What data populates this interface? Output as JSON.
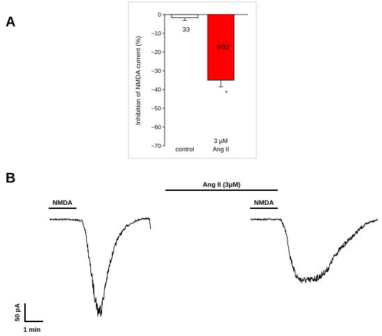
{
  "panels": {
    "a_letter": "A",
    "b_letter": "B"
  },
  "chart_data": {
    "type": "bar",
    "ylabel": "Inhibition of NMDA current (%)",
    "ylim": [
      -70,
      0
    ],
    "yticks": [
      0,
      -10,
      -20,
      -30,
      -40,
      -50,
      -60,
      -70
    ],
    "categories": [
      "control",
      "3 μM Ang II"
    ],
    "category_lines": [
      [
        "control"
      ],
      [
        "3 μM",
        "Ang  II"
      ]
    ],
    "values": [
      -1.7,
      -35
    ],
    "errors": [
      1.5,
      3.5
    ],
    "n_labels": [
      "33",
      "9/32"
    ],
    "significance": [
      "",
      "*"
    ],
    "colors": [
      "#ffffff",
      "#ff0000"
    ],
    "grid": false
  },
  "traces": {
    "nmda_label_1": "NMDA",
    "nmda_label_2": "NMDA",
    "angii_label": "Ang II (3μM)",
    "scale_y_label": "50 pA",
    "scale_x_label": "1 min"
  },
  "colors": {
    "bar_red": "#ff0000",
    "frame": "#c8c8c8",
    "trace": "#000000"
  }
}
